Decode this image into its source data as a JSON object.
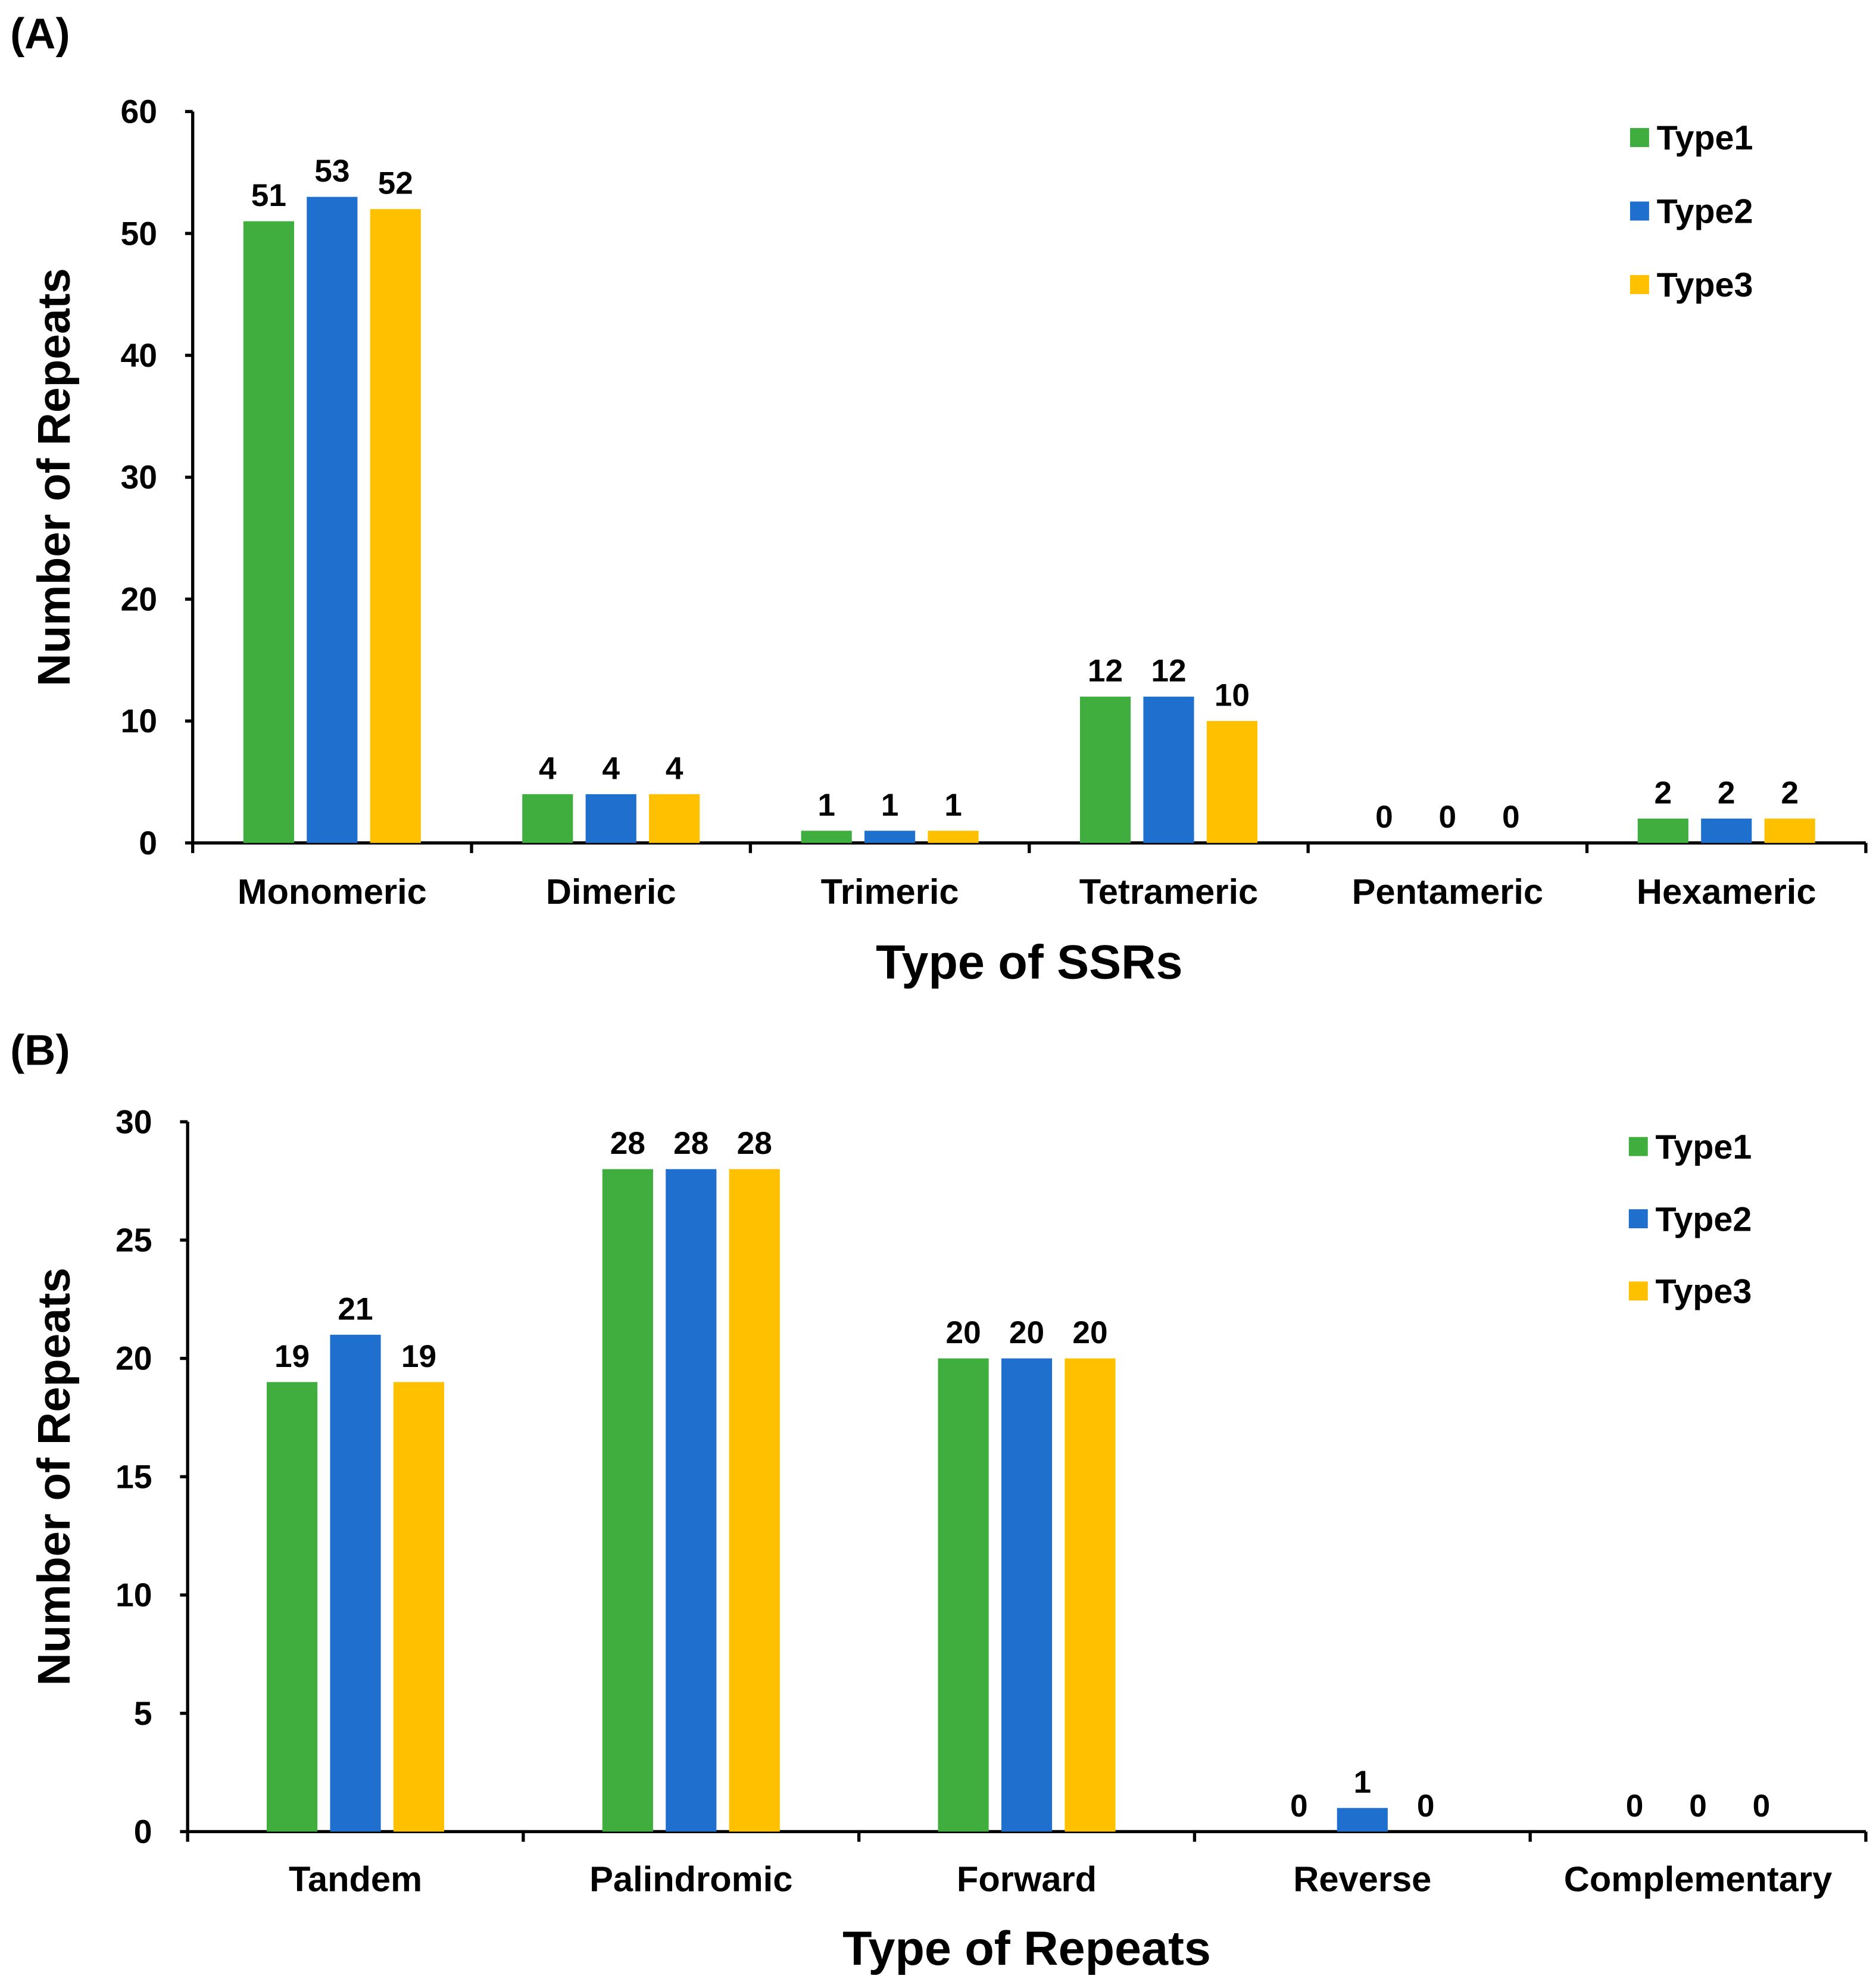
{
  "colors": {
    "Type1": "#3FAE3F",
    "Type2": "#1F6FCF",
    "Type3": "#FFC000"
  },
  "chart_data": [
    {
      "panel_label": "(A)",
      "type": "bar",
      "title": "",
      "xlabel": "Type of SSRs",
      "ylabel": "Number of Repeats",
      "ylim": [
        0,
        60
      ],
      "yticks": [
        0,
        10,
        20,
        30,
        40,
        50,
        60
      ],
      "categories": [
        "Monomeric",
        "Dimeric",
        "Trimeric",
        "Tetrameric",
        "Pentameric",
        "Hexameric"
      ],
      "series": [
        {
          "name": "Type1",
          "values": [
            51,
            4,
            1,
            12,
            0,
            2
          ]
        },
        {
          "name": "Type2",
          "values": [
            53,
            4,
            1,
            12,
            0,
            2
          ]
        },
        {
          "name": "Type3",
          "values": [
            52,
            4,
            1,
            10,
            0,
            2
          ]
        }
      ],
      "legend": "top-right",
      "grid": false
    },
    {
      "panel_label": "(B)",
      "type": "bar",
      "title": "",
      "xlabel": "Type of Repeats",
      "ylabel": "Number of Repeats",
      "ylim": [
        0,
        30
      ],
      "yticks": [
        0,
        5,
        10,
        15,
        20,
        25,
        30
      ],
      "categories": [
        "Tandem",
        "Palindromic",
        "Forward",
        "Reverse",
        "Complementary"
      ],
      "series": [
        {
          "name": "Type1",
          "values": [
            19,
            28,
            20,
            0,
            0
          ]
        },
        {
          "name": "Type2",
          "values": [
            21,
            28,
            20,
            1,
            0
          ]
        },
        {
          "name": "Type3",
          "values": [
            19,
            28,
            20,
            0,
            0
          ]
        }
      ],
      "legend": "top-right",
      "grid": false
    }
  ]
}
